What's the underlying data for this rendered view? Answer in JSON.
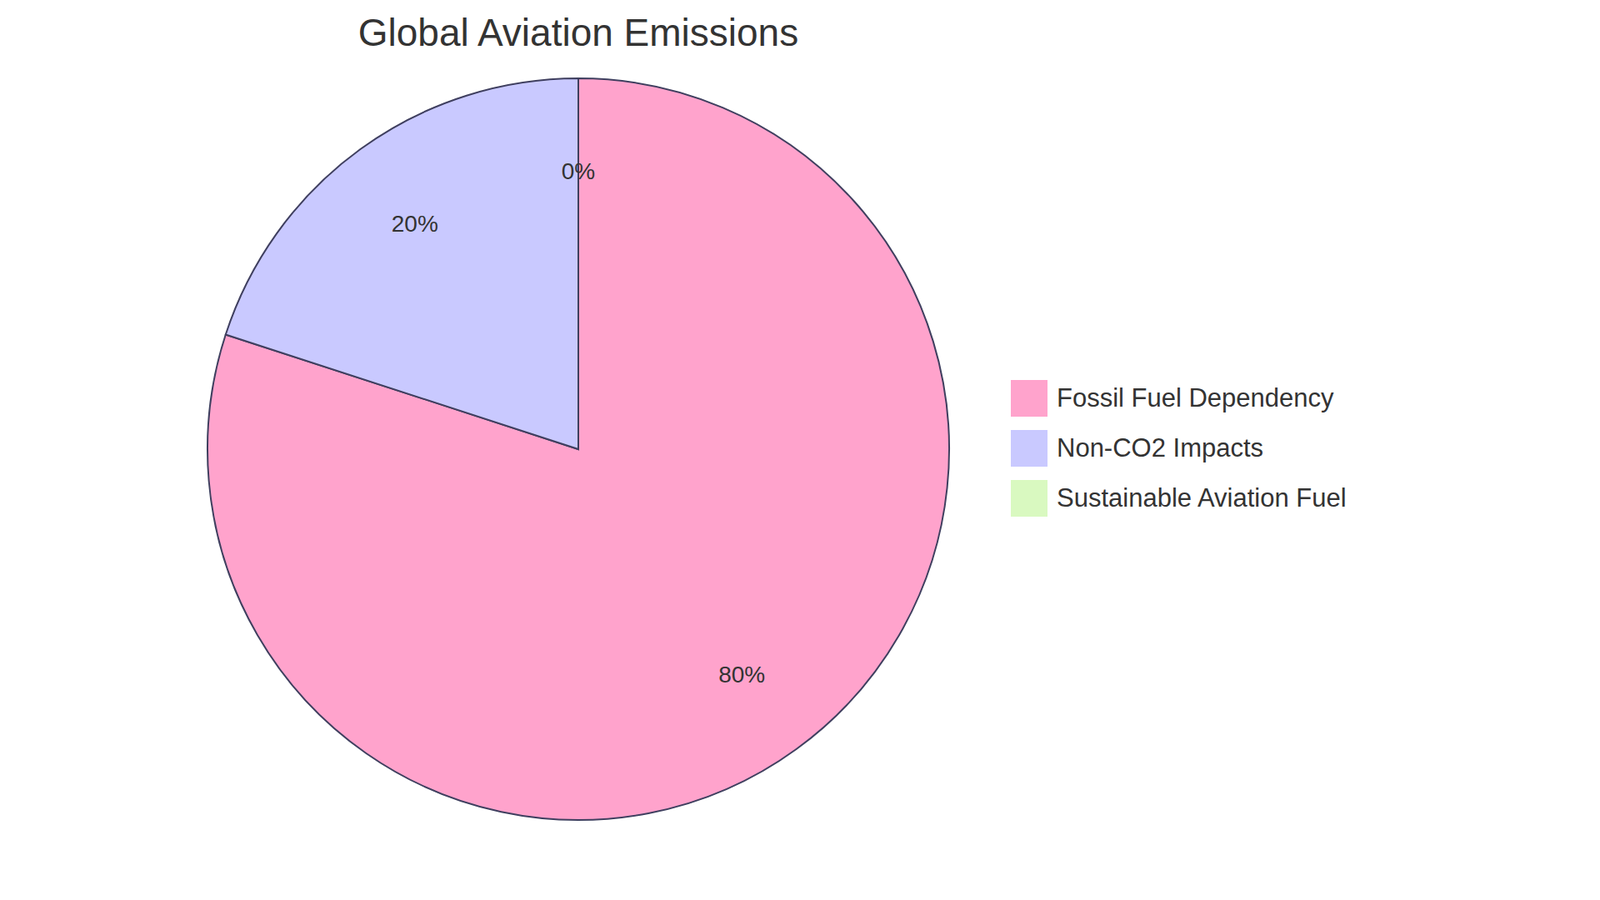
{
  "chart_data": {
    "type": "pie",
    "title": "Global Aviation Emissions",
    "categories": [
      "Fossil Fuel Dependency",
      "Non-CO2 Impacts",
      "Sustainable Aviation Fuel"
    ],
    "values": [
      80,
      20,
      0
    ],
    "value_labels": [
      "80%",
      "20%",
      "0%"
    ],
    "colors": [
      "#ffa3cc",
      "#c9c9ff",
      "#d9f9c0"
    ],
    "data_labels": true,
    "legend": "right"
  }
}
